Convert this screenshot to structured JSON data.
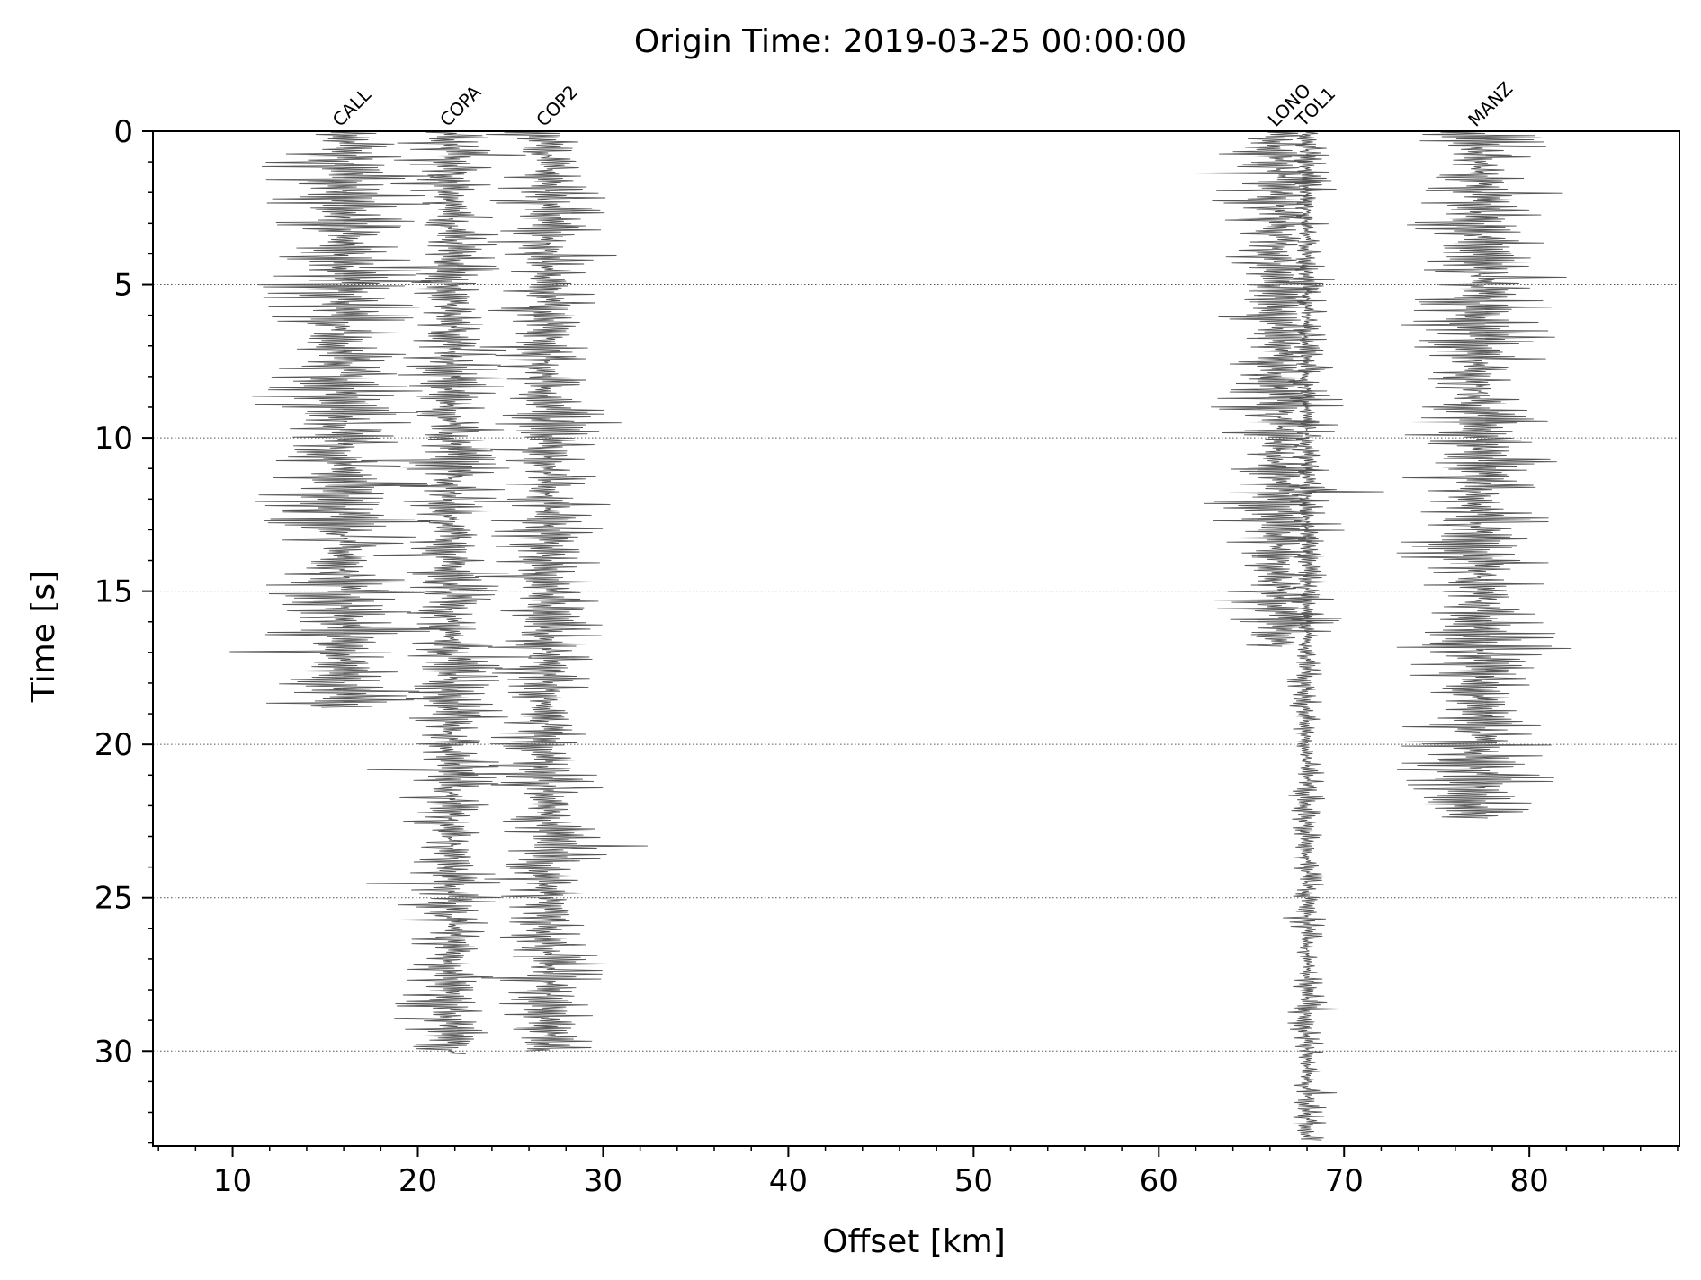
{
  "chart_data": {
    "type": "line",
    "title": "Origin Time: 2019-03-25 00:00:00",
    "xlabel": "Offset [km]",
    "ylabel": "Time [s]",
    "xlim": [
      5.7,
      88.1
    ],
    "ylim": [
      0,
      33.1
    ],
    "y_inverted": true,
    "xticks": [
      10,
      20,
      30,
      40,
      50,
      60,
      70,
      80
    ],
    "yticks": [
      0,
      5,
      10,
      15,
      20,
      25,
      30
    ],
    "grid": "horizontal-dotted",
    "trace_color": "#555555",
    "series": [
      {
        "name": "CALL",
        "offset": 16.0,
        "t_start": 0.0,
        "t_end": 18.8,
        "amplitude": 5.0
      },
      {
        "name": "COPA",
        "offset": 21.8,
        "t_start": 0.0,
        "t_end": 30.1,
        "amplitude": 3.2
      },
      {
        "name": "COP2",
        "offset": 27.0,
        "t_start": 0.0,
        "t_end": 30.0,
        "amplitude": 3.6
      },
      {
        "name": "LONO",
        "offset": 66.5,
        "t_start": 0.0,
        "t_end": 16.8,
        "amplitude": 3.8
      },
      {
        "name": "TOL1",
        "offset": 68.0,
        "t_start": 0.0,
        "t_end": 32.9,
        "amplitude": 1.1
      },
      {
        "name": "MANZ",
        "offset": 77.3,
        "t_start": 0.0,
        "t_end": 22.4,
        "amplitude": 4.6
      }
    ]
  }
}
